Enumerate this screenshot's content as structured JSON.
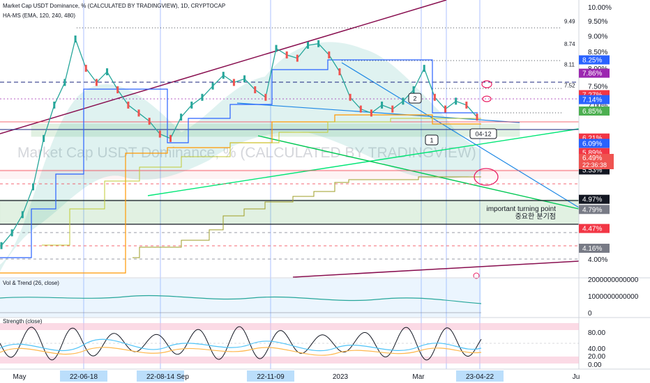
{
  "header": {
    "title": "Market Cap USDT Dominance, % (CALCULATED BY TRADINGVIEW), 1D, CRYPTOCAP",
    "indicator": "HA-MS (EMA, 120, 240, 480)"
  },
  "watermark": "Market Cap USDT Dominance, % (CALCULATED BY TRADINGVIEW)",
  "panels": {
    "vol_trend": {
      "title": "Vol & Trend (26, close)",
      "ticks": [
        "2000000000000",
        "1000000000000",
        "0"
      ]
    },
    "strength": {
      "title": "Strength (close)",
      "ticks": [
        "80.00",
        "40.00",
        "20.00",
        "0.00"
      ]
    }
  },
  "annotations": {
    "turning_point_en": "important turning point",
    "turning_point_ko": "중요한 분기점",
    "marker_1": "1",
    "marker_2": "2",
    "date_marker": "04-12"
  },
  "price": {
    "value": "6.49%",
    "countdown": "22:36:38"
  },
  "colors": {
    "up": "#26a69a",
    "down": "#ef5350",
    "label_red": "#f23645",
    "label_blue": "#2962ff",
    "label_green": "#4caf50",
    "label_purple": "#9c27b0"
  },
  "chart_data": {
    "type": "line",
    "ylabel": "",
    "ylim": [
      3.9,
      10.05
    ],
    "y_scale": "log",
    "y_ticks": [
      "10.00%",
      "9.50%",
      "9.00%",
      "8.50%",
      "8.00%",
      "7.50%",
      "7.00%",
      "4.00%"
    ],
    "level_labels": [
      {
        "text": "9.49",
        "value": 9.49
      },
      {
        "text": "8.74",
        "value": 8.74
      },
      {
        "text": "8.11",
        "value": 8.11
      },
      {
        "text": "7.52",
        "value": 7.52
      }
    ],
    "price_tags": [
      {
        "text": "8.25%",
        "value": 8.25,
        "color": "#2962ff"
      },
      {
        "text": "7.86%",
        "value": 7.86,
        "color": "#9c27b0"
      },
      {
        "text": "7.27%",
        "value": 7.27,
        "color": "#f23645"
      },
      {
        "text": "7.14%",
        "value": 7.14,
        "color": "#2962ff"
      },
      {
        "text": "6.85%",
        "value": 6.85,
        "color": "#4caf50"
      },
      {
        "text": "6.21%",
        "value": 6.21,
        "color": "#f23645"
      },
      {
        "text": "6.09%",
        "value": 6.09,
        "color": "#2962ff"
      },
      {
        "text": "5.89%",
        "value": 5.89,
        "color": "#f23645"
      },
      {
        "text": "5.53%",
        "value": 5.53,
        "color": "#131722"
      },
      {
        "text": "4.97%",
        "value": 4.97,
        "color": "#131722"
      },
      {
        "text": "4.79%",
        "value": 4.79,
        "color": "#787b86"
      },
      {
        "text": "4.47%",
        "value": 4.47,
        "color": "#f23645"
      },
      {
        "text": "4.16%",
        "value": 4.16,
        "color": "#787b86"
      }
    ],
    "x_labels": [
      {
        "text": "May",
        "boxed": false
      },
      {
        "text": "22-06-18",
        "boxed": true
      },
      {
        "text": "22-08-14",
        "boxed": true
      },
      {
        "text": "Sep",
        "boxed": false
      },
      {
        "text": "22-11-09",
        "boxed": true
      },
      {
        "text": "2023",
        "boxed": false
      },
      {
        "text": "Mar",
        "boxed": false
      },
      {
        "text": "23-04-22",
        "boxed": true
      },
      {
        "text": "Ju",
        "boxed": false
      }
    ],
    "series": [
      {
        "values": [
          4.2,
          4.4,
          4.7,
          5.2,
          6.2,
          7.0,
          7.6,
          8.9,
          8.0,
          7.6,
          7.9,
          7.4,
          7.0,
          6.8,
          6.6,
          6.3,
          6.2,
          6.7,
          7.0,
          7.2,
          7.5,
          7.8,
          7.6,
          7.7,
          7.4,
          7.2,
          8.6,
          8.4,
          8.3,
          8.7,
          8.75,
          8.4,
          7.9,
          7.2,
          6.9,
          6.8,
          7.0,
          6.9,
          7.1,
          7.4,
          8.0,
          7.2,
          6.9,
          7.1,
          7.0,
          6.7
        ]
      }
    ]
  }
}
